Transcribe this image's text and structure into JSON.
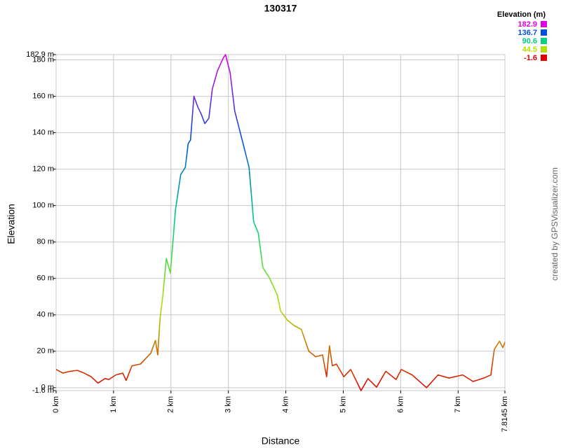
{
  "chart_data": {
    "type": "line",
    "title": "130317",
    "x_label": "Distance",
    "y_label": "Elevation",
    "credit": "created by GPSVisualizer.com",
    "legend_title": "Elevation (m)",
    "color_scale": [
      {
        "value": 182.9,
        "color": "#e000e0"
      },
      {
        "value": 136.7,
        "color": "#0050e0"
      },
      {
        "value": 90.6,
        "color": "#00d080"
      },
      {
        "value": 44.5,
        "color": "#b0e000"
      },
      {
        "value": -1.6,
        "color": "#e00000"
      }
    ],
    "x": [
      0,
      0.12,
      0.24,
      0.37,
      0.49,
      0.61,
      0.73,
      0.85,
      0.92,
      1.04,
      1.16,
      1.22,
      1.32,
      1.47,
      1.53,
      1.65,
      1.73,
      1.77,
      1.81,
      1.86,
      1.92,
      1.99,
      2.08,
      2.17,
      2.25,
      2.3,
      2.34,
      2.4,
      2.47,
      2.53,
      2.59,
      2.66,
      2.72,
      2.81,
      2.91,
      2.95,
      3.03,
      3.11,
      3.24,
      3.36,
      3.44,
      3.52,
      3.6,
      3.72,
      3.85,
      3.91,
      4.03,
      4.15,
      4.27,
      4.4,
      4.52,
      4.64,
      4.71,
      4.76,
      4.81,
      4.88,
      5.01,
      5.13,
      5.31,
      5.43,
      5.58,
      5.74,
      5.92,
      6.01,
      6.2,
      6.45,
      6.65,
      6.84,
      7.08,
      7.26,
      7.45,
      7.57,
      7.63,
      7.72,
      7.78,
      7.8145
    ],
    "values": [
      10,
      8,
      9,
      9.5,
      8,
      6,
      2.5,
      5,
      4.5,
      7,
      8,
      4,
      12,
      13,
      15,
      19,
      26,
      18,
      38,
      51,
      71,
      63,
      98,
      117,
      121,
      134,
      136,
      160,
      154,
      150,
      145,
      148,
      164,
      174,
      181,
      182.9,
      173,
      152,
      136,
      121,
      91,
      85,
      66,
      60,
      51,
      42,
      37,
      34,
      32,
      20,
      17,
      18,
      6,
      23,
      12,
      13,
      6,
      10,
      -1.6,
      5,
      0.3,
      9,
      4.5,
      10,
      7,
      0,
      7,
      5.3,
      7,
      3.4,
      5.3,
      7,
      21,
      25.5,
      22,
      25
    ],
    "xlim": [
      0,
      7.8145
    ],
    "xticks": [
      {
        "value": 0,
        "label": "0 km"
      },
      {
        "value": 1,
        "label": "1 km"
      },
      {
        "value": 2,
        "label": "2 km"
      },
      {
        "value": 3,
        "label": "3 km"
      },
      {
        "value": 4,
        "label": "4 km"
      },
      {
        "value": 5,
        "label": "5 km"
      },
      {
        "value": 6,
        "label": "6 km"
      },
      {
        "value": 7,
        "label": "7 km"
      },
      {
        "value": 7.8145,
        "label": "7.8145 km"
      }
    ],
    "ylim": [
      -1.6,
      182.9
    ],
    "yticks": [
      {
        "value": -1.6,
        "label": "-1.6 m"
      },
      {
        "value": 0,
        "label": "0 m"
      },
      {
        "value": 20,
        "label": "20 m"
      },
      {
        "value": 40,
        "label": "40 m"
      },
      {
        "value": 60,
        "label": "60 m"
      },
      {
        "value": 80,
        "label": "80 m"
      },
      {
        "value": 100,
        "label": "100 m"
      },
      {
        "value": 120,
        "label": "120 m"
      },
      {
        "value": 140,
        "label": "140 m"
      },
      {
        "value": 160,
        "label": "160 m"
      },
      {
        "value": 180,
        "label": "180 m"
      },
      {
        "value": 182.9,
        "label": "182.9 m"
      }
    ],
    "grid": true
  }
}
